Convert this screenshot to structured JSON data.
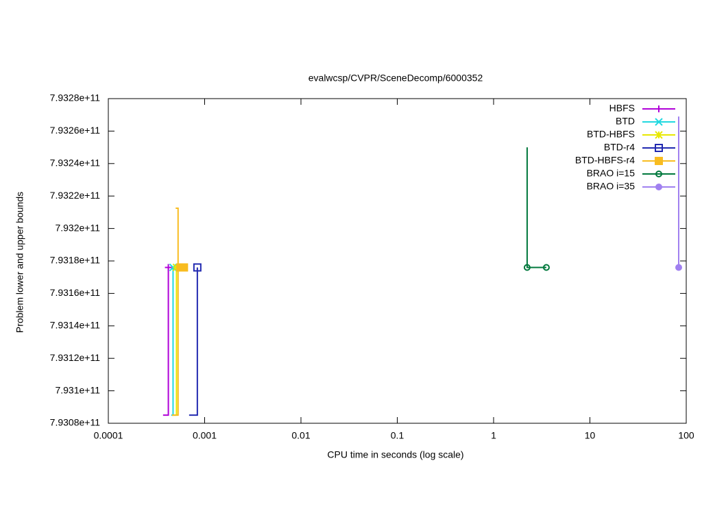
{
  "chart_data": {
    "type": "line",
    "title": "evalwcsp/CVPR/SceneDecomp/6000352",
    "x_label": "CPU time in seconds (log scale)",
    "y_label": "Problem lower and upper bounds",
    "xscale": "log",
    "xlim": [
      0.0001,
      100
    ],
    "xticks": [
      0.0001,
      0.001,
      0.01,
      0.1,
      1,
      10,
      100
    ],
    "ylim": [
      793080000000,
      793280000000
    ],
    "yticks": [
      {
        "value": 793080000000,
        "label": "7.9308e+11"
      },
      {
        "value": 793100000000,
        "label": "7.931e+11"
      },
      {
        "value": 793120000000,
        "label": "7.9312e+11"
      },
      {
        "value": 793140000000,
        "label": "7.9314e+11"
      },
      {
        "value": 793160000000,
        "label": "7.9316e+11"
      },
      {
        "value": 793180000000,
        "label": "7.9318e+11"
      },
      {
        "value": 793200000000,
        "label": "7.932e+11"
      },
      {
        "value": 793220000000,
        "label": "7.9322e+11"
      },
      {
        "value": 793240000000,
        "label": "7.9324e+11"
      },
      {
        "value": 793260000000,
        "label": "7.9326e+11"
      },
      {
        "value": 793280000000,
        "label": "7.9328e+11"
      }
    ],
    "legend": "top-right",
    "series": [
      {
        "name": "HBFS",
        "color": "#b000d8",
        "marker": "plus",
        "x": [
          0.00037,
          0.00042,
          0.00042
        ],
        "values": [
          793085000000,
          793085000000,
          793176000000
        ]
      },
      {
        "name": "BTD",
        "color": "#20d8e0",
        "marker": "cross",
        "x": [
          0.00045,
          0.00047,
          0.00047
        ],
        "values": [
          793085000000,
          793085000000,
          793176000000
        ]
      },
      {
        "name": "BTD-HBFS",
        "color": "#e8e800",
        "marker": "star",
        "x": [
          0.00046,
          0.00051,
          0.00051
        ],
        "values": [
          793085000000,
          793085000000,
          793176000000
        ]
      },
      {
        "name": "BTD-r4",
        "color": "#2028b0",
        "marker": "open-square",
        "x": [
          0.00069,
          0.00084,
          0.00084
        ],
        "values": [
          793085000000,
          793085000000,
          793176000000
        ]
      },
      {
        "name": "BTD-HBFS-r4",
        "color": "#f8bc20",
        "marker": "filled-square",
        "x": [
          0.00046,
          0.00053,
          0.00053,
          0.0005,
          0.0005,
          0.00056,
          0.00061
        ],
        "values": [
          793085000000,
          793085000000,
          793212500000,
          793212500000,
          null,
          793176000000,
          793176000000
        ]
      },
      {
        "name": "BRAO i=15",
        "color": "#00783c",
        "marker": "open-circle",
        "x": [
          2.23,
          2.23,
          3.53
        ],
        "values": [
          793250000000,
          793176000000,
          793176000000
        ]
      },
      {
        "name": "BRAO i=35",
        "color": "#a080f0",
        "marker": "filled-circle",
        "x": [
          83.5,
          83.5
        ],
        "values": [
          793269000000,
          793176000000
        ]
      }
    ]
  }
}
